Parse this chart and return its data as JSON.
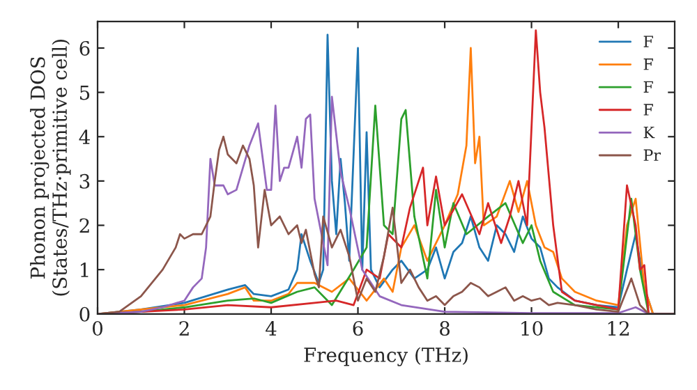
{
  "chart_data": {
    "type": "line",
    "xlabel": "Frequency (THz)",
    "ylabel": "Phonon projected DOS\n(States/THz·primitive cell)",
    "xlim": [
      0,
      13.3
    ],
    "ylim": [
      0,
      6.6
    ],
    "xticks": [
      0,
      2,
      4,
      6,
      8,
      10,
      12
    ],
    "yticks": [
      0,
      1,
      2,
      3,
      4,
      5,
      6
    ],
    "grid": false,
    "legend": "top right",
    "marker": "none",
    "line_style": "solid",
    "series": [
      {
        "name": "F",
        "color": "#1f77b4",
        "x": [
          0,
          1,
          2,
          2.5,
          3.0,
          3.4,
          3.6,
          4.0,
          4.4,
          4.6,
          4.7,
          4.9,
          5.1,
          5.2,
          5.3,
          5.4,
          5.5,
          5.6,
          5.7,
          5.8,
          6.0,
          6.1,
          6.2,
          6.3,
          6.5,
          6.8,
          7.0,
          7.3,
          7.6,
          7.8,
          8.0,
          8.2,
          8.4,
          8.6,
          8.8,
          9.0,
          9.2,
          9.4,
          9.6,
          9.8,
          10.0,
          10.2,
          10.4,
          10.6,
          11.0,
          11.5,
          12.0,
          12.2,
          12.4,
          12.6,
          12.8,
          13.3
        ],
        "values": [
          0,
          0.1,
          0.25,
          0.4,
          0.55,
          0.65,
          0.45,
          0.4,
          0.55,
          1.0,
          1.8,
          1.2,
          0.7,
          1.0,
          6.3,
          3.0,
          1.8,
          3.5,
          2.5,
          1.2,
          6.0,
          1.0,
          4.1,
          1.0,
          0.6,
          1.0,
          1.2,
          0.8,
          1.0,
          1.5,
          0.8,
          1.4,
          1.6,
          2.2,
          1.5,
          1.2,
          2.0,
          1.8,
          1.4,
          2.2,
          1.7,
          1.5,
          0.8,
          0.6,
          0.3,
          0.2,
          0.15,
          1.0,
          1.8,
          0.6,
          0,
          0
        ]
      },
      {
        "name": "F",
        "color": "#ff7f0e",
        "x": [
          0,
          1,
          2,
          3.0,
          3.4,
          3.6,
          4.0,
          4.4,
          4.6,
          5.0,
          5.4,
          5.8,
          6.2,
          6.6,
          6.8,
          7.0,
          7.3,
          7.6,
          8.0,
          8.3,
          8.5,
          8.6,
          8.7,
          8.8,
          8.9,
          9.2,
          9.5,
          9.7,
          9.9,
          10.1,
          10.3,
          10.5,
          10.7,
          11.0,
          11.5,
          12.0,
          12.2,
          12.4,
          12.6,
          12.8,
          13.3
        ],
        "values": [
          0,
          0.1,
          0.2,
          0.45,
          0.6,
          0.3,
          0.3,
          0.45,
          0.7,
          0.7,
          0.5,
          0.8,
          0.3,
          0.8,
          0.5,
          1.5,
          2.0,
          1.2,
          2.0,
          2.7,
          3.8,
          6.0,
          3.4,
          4.0,
          2.0,
          2.2,
          3.0,
          2.3,
          3.0,
          2.0,
          1.5,
          1.4,
          0.8,
          0.5,
          0.3,
          0.2,
          2.0,
          2.6,
          0.6,
          0,
          0
        ]
      },
      {
        "name": "F",
        "color": "#2ca02c",
        "x": [
          0,
          1,
          2,
          3.0,
          3.6,
          4.0,
          4.6,
          5.0,
          5.4,
          5.9,
          6.2,
          6.4,
          6.6,
          6.8,
          7.0,
          7.1,
          7.3,
          7.6,
          7.8,
          8.0,
          8.2,
          8.5,
          9.0,
          9.4,
          9.8,
          10.0,
          10.2,
          10.5,
          11.0,
          12.0,
          12.3,
          12.5,
          12.7,
          13.3
        ],
        "values": [
          0,
          0.05,
          0.15,
          0.3,
          0.35,
          0.25,
          0.5,
          0.6,
          0.2,
          1.0,
          1.5,
          4.7,
          2.0,
          1.8,
          4.4,
          4.6,
          2.2,
          0.8,
          2.8,
          1.5,
          2.5,
          1.8,
          2.2,
          2.5,
          1.6,
          2.0,
          1.2,
          0.5,
          0.2,
          0.1,
          2.6,
          1.0,
          0,
          0
        ]
      },
      {
        "name": "F",
        "color": "#d62728",
        "x": [
          0,
          1,
          2,
          3.0,
          4.0,
          5.0,
          5.5,
          5.9,
          6.2,
          6.5,
          6.7,
          7.0,
          7.2,
          7.5,
          7.6,
          7.8,
          8.0,
          8.4,
          8.8,
          9.0,
          9.3,
          9.5,
          9.7,
          9.9,
          10.1,
          10.2,
          10.3,
          10.5,
          10.7,
          11.0,
          12.0,
          12.2,
          12.4,
          12.5,
          12.6,
          12.7,
          13.3
        ],
        "values": [
          0,
          0.05,
          0.1,
          0.2,
          0.15,
          0.25,
          0.3,
          0.2,
          1.0,
          0.8,
          1.8,
          1.5,
          2.4,
          3.3,
          2.0,
          3.1,
          2.0,
          2.7,
          1.8,
          2.5,
          1.6,
          2.2,
          3.0,
          2.0,
          6.4,
          5.0,
          4.2,
          2.0,
          0.5,
          0.3,
          0.1,
          2.9,
          2.0,
          1.0,
          1.1,
          0,
          0
        ]
      },
      {
        "name": "K",
        "color": "#9467bd",
        "x": [
          0,
          1.0,
          1.5,
          2.0,
          2.2,
          2.4,
          2.5,
          2.6,
          2.7,
          2.9,
          3.0,
          3.2,
          3.5,
          3.7,
          3.9,
          4.0,
          4.1,
          4.2,
          4.3,
          4.4,
          4.6,
          4.7,
          4.8,
          4.9,
          5.0,
          5.2,
          5.3,
          5.4,
          5.6,
          5.8,
          6.1,
          6.5,
          7.0,
          8.0,
          10.0,
          12.0,
          12.4,
          12.7,
          13.3
        ],
        "values": [
          0,
          0.05,
          0.15,
          0.3,
          0.6,
          0.8,
          1.5,
          3.5,
          2.9,
          2.9,
          2.7,
          2.8,
          3.8,
          4.3,
          2.8,
          2.8,
          4.7,
          3.0,
          3.3,
          3.3,
          4.0,
          3.3,
          4.4,
          4.5,
          2.6,
          1.6,
          1.1,
          4.9,
          3.2,
          2.4,
          1.0,
          0.4,
          0.2,
          0.05,
          0.02,
          0.02,
          0.15,
          0,
          0
        ]
      },
      {
        "name": "Pr",
        "color": "#8c564b",
        "x": [
          0,
          0.5,
          1.0,
          1.5,
          1.8,
          1.9,
          2.0,
          2.2,
          2.4,
          2.6,
          2.7,
          2.8,
          2.9,
          3.0,
          3.2,
          3.35,
          3.5,
          3.6,
          3.7,
          3.85,
          4.0,
          4.2,
          4.4,
          4.6,
          4.7,
          4.8,
          5.0,
          5.1,
          5.2,
          5.4,
          5.6,
          5.8,
          6.0,
          6.2,
          6.4,
          6.6,
          6.8,
          7.0,
          7.2,
          7.4,
          7.6,
          7.8,
          8.0,
          8.2,
          8.4,
          8.6,
          8.8,
          9.0,
          9.2,
          9.4,
          9.6,
          9.8,
          10.0,
          10.2,
          10.4,
          10.6,
          11.0,
          11.5,
          12.0,
          12.3,
          12.5,
          12.7,
          13.3
        ],
        "values": [
          0,
          0.05,
          0.4,
          1.0,
          1.5,
          1.8,
          1.7,
          1.8,
          1.8,
          2.2,
          3.0,
          3.7,
          4.0,
          3.6,
          3.4,
          3.8,
          3.5,
          2.9,
          1.5,
          2.8,
          2.0,
          2.2,
          1.8,
          2.0,
          1.6,
          1.9,
          0.9,
          0.6,
          2.2,
          1.5,
          1.9,
          1.3,
          0.3,
          0.8,
          0.5,
          1.3,
          2.4,
          0.7,
          1.0,
          0.6,
          0.3,
          0.4,
          0.2,
          0.4,
          0.5,
          0.7,
          0.6,
          0.4,
          0.5,
          0.6,
          0.3,
          0.4,
          0.3,
          0.35,
          0.2,
          0.25,
          0.2,
          0.1,
          0.05,
          0.8,
          0.2,
          0,
          0
        ]
      }
    ]
  }
}
